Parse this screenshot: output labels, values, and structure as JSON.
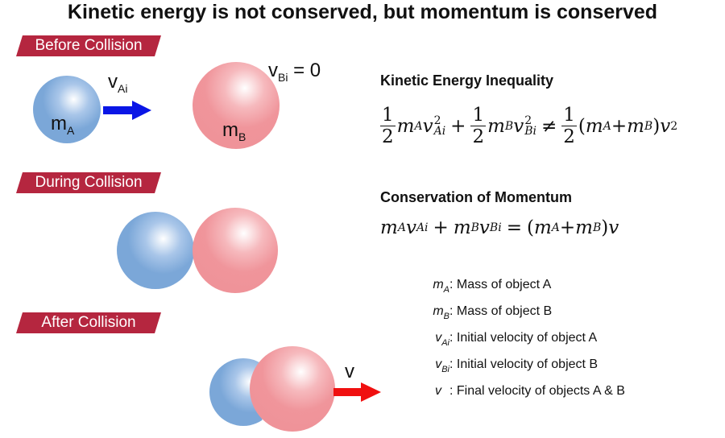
{
  "title": "Kinetic energy is not conserved, but momentum is conserved",
  "colors": {
    "banner": "#b5263f",
    "object_a": "#7ba7d8",
    "object_b": "#f0959b",
    "arrow_initial": "#0a16e6",
    "arrow_final": "#f01010"
  },
  "stages": [
    {
      "label": "Before Collision"
    },
    {
      "label": "During Collision"
    },
    {
      "label": "After Collision"
    }
  ],
  "before": {
    "mass_a": {
      "base": "m",
      "sub": "A"
    },
    "mass_b": {
      "base": "m",
      "sub": "B"
    },
    "velocity_a": {
      "base": "v",
      "sub": "Ai"
    },
    "velocity_b": {
      "base": "v",
      "sub": "Bi",
      "rest": " = 0"
    }
  },
  "after": {
    "velocity": "v"
  },
  "kinetic": {
    "heading": "Kinetic Energy Inequality",
    "num": "1",
    "den": "2",
    "m": "m",
    "v": "v",
    "A": "A",
    "B": "B",
    "Ai": "Ai",
    "Bi": "Bi",
    "sq": "2",
    "plus": "+",
    "neq": "≠",
    "lparen": "(",
    "rparen": ")"
  },
  "momentum": {
    "heading": "Conservation of Momentum",
    "equals": "="
  },
  "legend": [
    {
      "base": "m",
      "sub": "A",
      "text": ": Mass of object A"
    },
    {
      "base": "m",
      "sub": "B",
      "text": ": Mass of object B"
    },
    {
      "base": "v",
      "sub": "Ai",
      "text": ": Initial velocity of object A"
    },
    {
      "base": "v",
      "sub": "Bi",
      "text": ": Initial velocity of object B"
    },
    {
      "base": "v",
      "sub": "",
      "text": ": Final velocity of objects A & B"
    }
  ]
}
